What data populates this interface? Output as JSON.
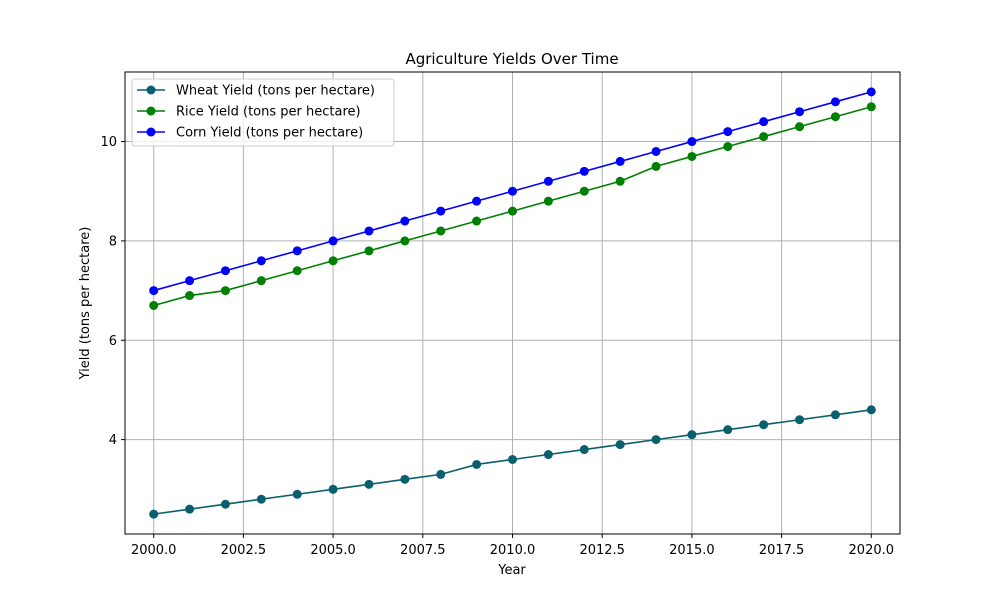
{
  "chart_data": {
    "type": "line",
    "title": "Agriculture Yields Over Time",
    "xlabel": "Year",
    "ylabel": "Yield (tons per hectare)",
    "xlim": [
      1999.2,
      2020.8
    ],
    "ylim": [
      2.1,
      11.4
    ],
    "xticks": [
      2000.0,
      2002.5,
      2005.0,
      2007.5,
      2010.0,
      2012.5,
      2015.0,
      2017.5,
      2020.0
    ],
    "xtick_labels": [
      "2000.0",
      "2002.5",
      "2005.0",
      "2007.5",
      "2010.0",
      "2012.5",
      "2015.0",
      "2017.5",
      "2020.0"
    ],
    "yticks": [
      4,
      6,
      8,
      10
    ],
    "ytick_labels": [
      "4",
      "6",
      "8",
      "10"
    ],
    "grid": true,
    "legend_position": "top-left",
    "x": [
      2000,
      2001,
      2002,
      2003,
      2004,
      2005,
      2006,
      2007,
      2008,
      2009,
      2010,
      2011,
      2012,
      2013,
      2014,
      2015,
      2016,
      2017,
      2018,
      2019,
      2020
    ],
    "series": [
      {
        "name": "Wheat Yield (tons per hectare)",
        "color": "#0a5f6f",
        "marker": "circle",
        "values": [
          2.5,
          2.6,
          2.7,
          2.8,
          2.9,
          3.0,
          3.1,
          3.2,
          3.3,
          3.5,
          3.6,
          3.7,
          3.8,
          3.9,
          4.0,
          4.1,
          4.2,
          4.3,
          4.4,
          4.5,
          4.6
        ]
      },
      {
        "name": "Rice Yield (tons per hectare)",
        "color": "#008000",
        "marker": "circle",
        "values": [
          6.7,
          6.9,
          7.0,
          7.2,
          7.4,
          7.6,
          7.8,
          8.0,
          8.2,
          8.4,
          8.6,
          8.8,
          9.0,
          9.2,
          9.5,
          9.7,
          9.9,
          10.1,
          10.3,
          10.5,
          10.7
        ]
      },
      {
        "name": "Corn Yield (tons per hectare)",
        "color": "#0000ff",
        "marker": "circle",
        "values": [
          7.0,
          7.2,
          7.4,
          7.6,
          7.8,
          8.0,
          8.2,
          8.4,
          8.6,
          8.8,
          9.0,
          9.2,
          9.4,
          9.6,
          9.8,
          10.0,
          10.2,
          10.4,
          10.6,
          10.8,
          11.0
        ]
      }
    ]
  }
}
